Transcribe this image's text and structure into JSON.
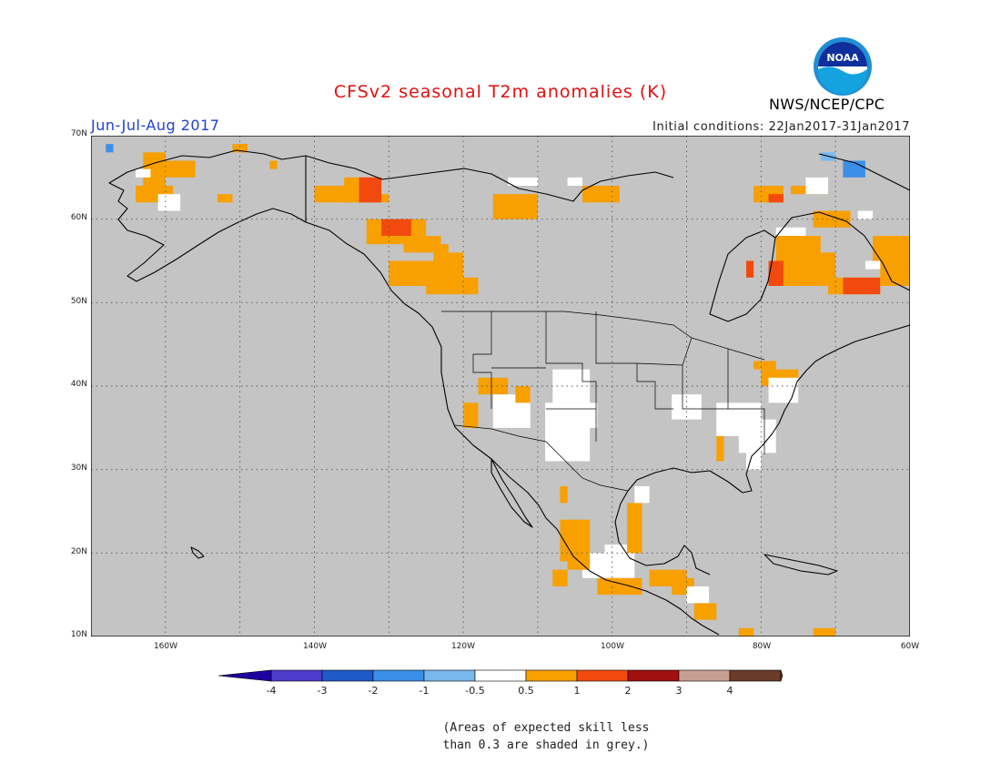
{
  "header": {
    "title": "CFSv2 seasonal T2m anomalies (K)",
    "period": "Jun-Jul-Aug 2017",
    "initial_conditions": "Initial conditions: 22Jan2017-31Jan2017",
    "agency": "NWS/NCEP/CPC",
    "logo_text": "NOAA"
  },
  "map": {
    "lon_range": [
      -170,
      -60
    ],
    "lat_range": [
      10,
      70
    ],
    "grid": true,
    "background_color": "#c4c4c4",
    "lat_labels": [
      "70N",
      "60N",
      "50N",
      "40N",
      "30N",
      "20N",
      "10N"
    ],
    "lon_labels": [
      "160W",
      "140W",
      "120W",
      "100W",
      "80W",
      "60W"
    ]
  },
  "legend": {
    "colors": [
      "#1e00a0",
      "#4c3ccc",
      "#1f5ac8",
      "#3b8fe8",
      "#78b8ee",
      "#ffffff",
      "#f7a000",
      "#f24a0e",
      "#a01010",
      "#c79f92",
      "#6b3b2a"
    ],
    "labels": [
      "-4",
      "-3",
      "-2",
      "-1",
      "-0.5",
      "0.5",
      "1",
      "2",
      "3",
      "4"
    ]
  },
  "note": {
    "line1": "(Areas of expected skill less",
    "line2": "than 0.3 are shaded in grey.)"
  }
}
